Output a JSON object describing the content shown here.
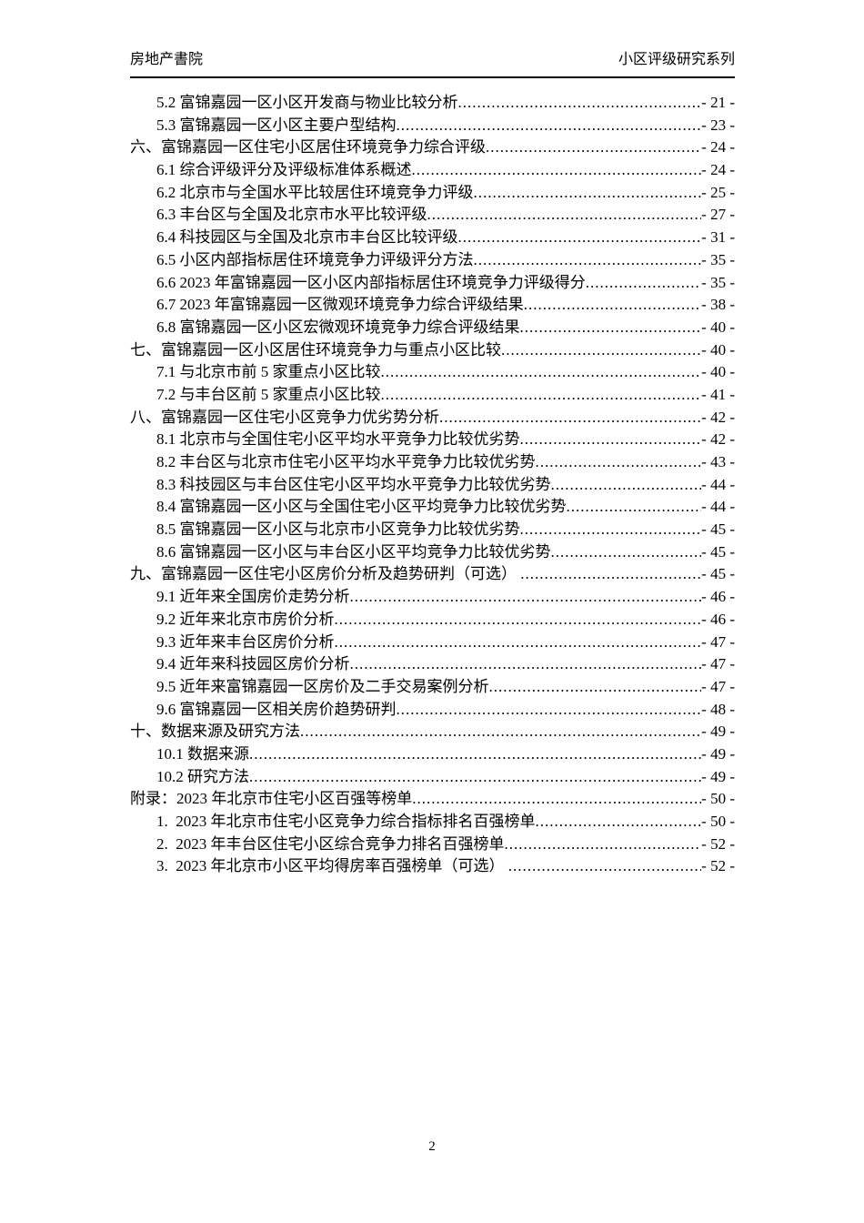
{
  "header": {
    "left": "房地产書院",
    "right": "小区评级研究系列"
  },
  "toc": {
    "entries": [
      {
        "level": 2,
        "label": "5.2 富锦嘉园一区小区开发商与物业比较分析",
        "page": "- 21 -"
      },
      {
        "level": 2,
        "label": "5.3 富锦嘉园一区小区主要户型结构",
        "page": "- 23 -"
      },
      {
        "level": 1,
        "label": "六、富锦嘉园一区住宅小区居住环境竞争力综合评级",
        "page": "- 24 -"
      },
      {
        "level": 2,
        "label": "6.1 综合评级评分及评级标准体系概述",
        "page": "- 24 -"
      },
      {
        "level": 2,
        "label": "6.2 北京市与全国水平比较居住环境竞争力评级",
        "page": "- 25 -"
      },
      {
        "level": 2,
        "label": "6.3 丰台区与全国及北京市水平比较评级",
        "page": "- 27 -"
      },
      {
        "level": 2,
        "label": "6.4 科技园区与全国及北京市丰台区比较评级",
        "page": "- 31 -"
      },
      {
        "level": 2,
        "label": "6.5 小区内部指标居住环境竞争力评级评分方法",
        "page": "- 35 -"
      },
      {
        "level": 2,
        "label": "6.6 2023 年富锦嘉园一区小区内部指标居住环境竞争力评级得分",
        "page": "- 35 -"
      },
      {
        "level": 2,
        "label": "6.7 2023 年富锦嘉园一区微观环境竞争力综合评级结果",
        "page": "- 38 -"
      },
      {
        "level": 2,
        "label": "6.8 富锦嘉园一区小区宏微观环境竞争力综合评级结果",
        "page": "- 40 -"
      },
      {
        "level": 1,
        "label": "七、富锦嘉园一区小区居住环境竞争力与重点小区比较",
        "page": "- 40 -"
      },
      {
        "level": 2,
        "label": "7.1 与北京市前 5 家重点小区比较",
        "page": "- 40 -"
      },
      {
        "level": 2,
        "label": "7.2 与丰台区前 5 家重点小区比较",
        "page": "- 41 -"
      },
      {
        "level": 1,
        "label": "八、富锦嘉园一区住宅小区竞争力优劣势分析",
        "page": "- 42 -"
      },
      {
        "level": 2,
        "label": "8.1 北京市与全国住宅小区平均水平竞争力比较优劣势",
        "page": "- 42 -"
      },
      {
        "level": 2,
        "label": "8.2 丰台区与北京市住宅小区平均水平竞争力比较优劣势",
        "page": "- 43 -"
      },
      {
        "level": 2,
        "label": "8.3 科技园区与丰台区住宅小区平均水平竞争力比较优劣势",
        "page": "- 44 -"
      },
      {
        "level": 2,
        "label": "8.4 富锦嘉园一区小区与全国住宅小区平均竞争力比较优劣势",
        "page": "- 44 -"
      },
      {
        "level": 2,
        "label": "8.5 富锦嘉园一区小区与北京市小区竞争力比较优劣势",
        "page": "- 45 -"
      },
      {
        "level": 2,
        "label": "8.6 富锦嘉园一区小区与丰台区小区平均竞争力比较优劣势",
        "page": "- 45 -"
      },
      {
        "level": 1,
        "label": "九、富锦嘉园一区住宅小区房价分析及趋势研判（可选） ",
        "page": "- 45 -"
      },
      {
        "level": 2,
        "label": "9.1 近年来全国房价走势分析",
        "page": "- 46 -"
      },
      {
        "level": 2,
        "label": "9.2 近年来北京市房价分析",
        "page": "- 46 -"
      },
      {
        "level": 2,
        "label": "9.3 近年来丰台区房价分析",
        "page": "- 47 -"
      },
      {
        "level": 2,
        "label": "9.4 近年来科技园区房价分析",
        "page": "- 47 -"
      },
      {
        "level": 2,
        "label": "9.5 近年来富锦嘉园一区房价及二手交易案例分析",
        "page": "- 47 -"
      },
      {
        "level": 2,
        "label": "9.6 富锦嘉园一区相关房价趋势研判",
        "page": "- 48 -"
      },
      {
        "level": 1,
        "label": "十、数据来源及研究方法",
        "page": "- 49 -"
      },
      {
        "level": 2,
        "label": "10.1 数据来源",
        "page": "- 49 -"
      },
      {
        "level": 2,
        "label": "10.2 研究方法",
        "page": "- 49 -"
      },
      {
        "level": 1,
        "label": "附录：2023 年北京市住宅小区百强等榜单",
        "page": "- 50 -"
      },
      {
        "level": 2,
        "label": "1.  2023 年北京市住宅小区竞争力综合指标排名百强榜单",
        "page": "- 50 -"
      },
      {
        "level": 2,
        "label": "2.  2023 年丰台区住宅小区综合竞争力排名百强榜单",
        "page": "- 52 -"
      },
      {
        "level": 2,
        "label": "3.  2023 年北京市小区平均得房率百强榜单（可选） ",
        "page": "- 52 -"
      }
    ]
  },
  "footer": {
    "page_number": "2"
  }
}
